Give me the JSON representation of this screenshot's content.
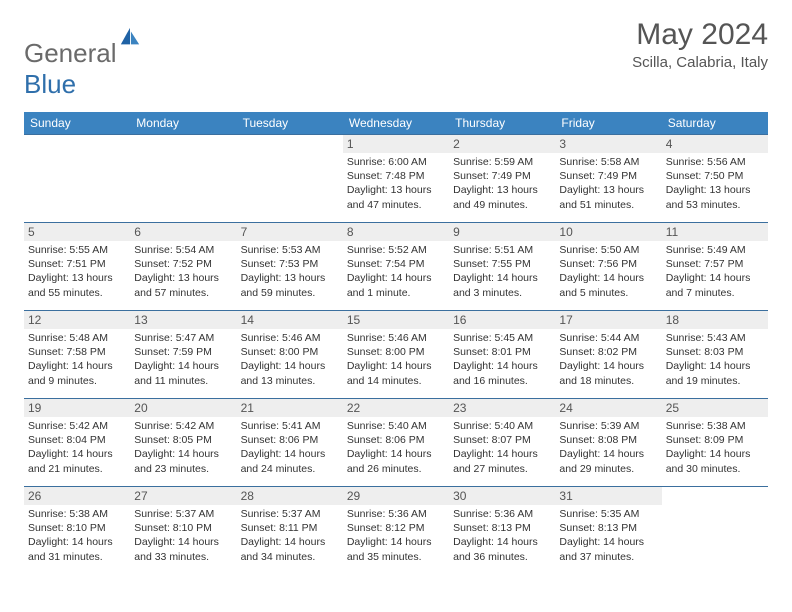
{
  "brand": {
    "part1": "General",
    "part2": "Blue"
  },
  "title": "May 2024",
  "location": "Scilla, Calabria, Italy",
  "weekdays": [
    "Sunday",
    "Monday",
    "Tuesday",
    "Wednesday",
    "Thursday",
    "Friday",
    "Saturday"
  ],
  "colors": {
    "header_bg": "#3b83c0",
    "header_text": "#ffffff",
    "row_border": "#3b6f9e",
    "daynum_bg": "#eeeeee",
    "text": "#333333"
  },
  "layout": {
    "blanks_before": 3,
    "blanks_after": 1
  },
  "days": [
    {
      "n": "1",
      "sunrise": "6:00 AM",
      "sunset": "7:48 PM",
      "daylight": "13 hours and 47 minutes."
    },
    {
      "n": "2",
      "sunrise": "5:59 AM",
      "sunset": "7:49 PM",
      "daylight": "13 hours and 49 minutes."
    },
    {
      "n": "3",
      "sunrise": "5:58 AM",
      "sunset": "7:49 PM",
      "daylight": "13 hours and 51 minutes."
    },
    {
      "n": "4",
      "sunrise": "5:56 AM",
      "sunset": "7:50 PM",
      "daylight": "13 hours and 53 minutes."
    },
    {
      "n": "5",
      "sunrise": "5:55 AM",
      "sunset": "7:51 PM",
      "daylight": "13 hours and 55 minutes."
    },
    {
      "n": "6",
      "sunrise": "5:54 AM",
      "sunset": "7:52 PM",
      "daylight": "13 hours and 57 minutes."
    },
    {
      "n": "7",
      "sunrise": "5:53 AM",
      "sunset": "7:53 PM",
      "daylight": "13 hours and 59 minutes."
    },
    {
      "n": "8",
      "sunrise": "5:52 AM",
      "sunset": "7:54 PM",
      "daylight": "14 hours and 1 minute."
    },
    {
      "n": "9",
      "sunrise": "5:51 AM",
      "sunset": "7:55 PM",
      "daylight": "14 hours and 3 minutes."
    },
    {
      "n": "10",
      "sunrise": "5:50 AM",
      "sunset": "7:56 PM",
      "daylight": "14 hours and 5 minutes."
    },
    {
      "n": "11",
      "sunrise": "5:49 AM",
      "sunset": "7:57 PM",
      "daylight": "14 hours and 7 minutes."
    },
    {
      "n": "12",
      "sunrise": "5:48 AM",
      "sunset": "7:58 PM",
      "daylight": "14 hours and 9 minutes."
    },
    {
      "n": "13",
      "sunrise": "5:47 AM",
      "sunset": "7:59 PM",
      "daylight": "14 hours and 11 minutes."
    },
    {
      "n": "14",
      "sunrise": "5:46 AM",
      "sunset": "8:00 PM",
      "daylight": "14 hours and 13 minutes."
    },
    {
      "n": "15",
      "sunrise": "5:46 AM",
      "sunset": "8:00 PM",
      "daylight": "14 hours and 14 minutes."
    },
    {
      "n": "16",
      "sunrise": "5:45 AM",
      "sunset": "8:01 PM",
      "daylight": "14 hours and 16 minutes."
    },
    {
      "n": "17",
      "sunrise": "5:44 AM",
      "sunset": "8:02 PM",
      "daylight": "14 hours and 18 minutes."
    },
    {
      "n": "18",
      "sunrise": "5:43 AM",
      "sunset": "8:03 PM",
      "daylight": "14 hours and 19 minutes."
    },
    {
      "n": "19",
      "sunrise": "5:42 AM",
      "sunset": "8:04 PM",
      "daylight": "14 hours and 21 minutes."
    },
    {
      "n": "20",
      "sunrise": "5:42 AM",
      "sunset": "8:05 PM",
      "daylight": "14 hours and 23 minutes."
    },
    {
      "n": "21",
      "sunrise": "5:41 AM",
      "sunset": "8:06 PM",
      "daylight": "14 hours and 24 minutes."
    },
    {
      "n": "22",
      "sunrise": "5:40 AM",
      "sunset": "8:06 PM",
      "daylight": "14 hours and 26 minutes."
    },
    {
      "n": "23",
      "sunrise": "5:40 AM",
      "sunset": "8:07 PM",
      "daylight": "14 hours and 27 minutes."
    },
    {
      "n": "24",
      "sunrise": "5:39 AM",
      "sunset": "8:08 PM",
      "daylight": "14 hours and 29 minutes."
    },
    {
      "n": "25",
      "sunrise": "5:38 AM",
      "sunset": "8:09 PM",
      "daylight": "14 hours and 30 minutes."
    },
    {
      "n": "26",
      "sunrise": "5:38 AM",
      "sunset": "8:10 PM",
      "daylight": "14 hours and 31 minutes."
    },
    {
      "n": "27",
      "sunrise": "5:37 AM",
      "sunset": "8:10 PM",
      "daylight": "14 hours and 33 minutes."
    },
    {
      "n": "28",
      "sunrise": "5:37 AM",
      "sunset": "8:11 PM",
      "daylight": "14 hours and 34 minutes."
    },
    {
      "n": "29",
      "sunrise": "5:36 AM",
      "sunset": "8:12 PM",
      "daylight": "14 hours and 35 minutes."
    },
    {
      "n": "30",
      "sunrise": "5:36 AM",
      "sunset": "8:13 PM",
      "daylight": "14 hours and 36 minutes."
    },
    {
      "n": "31",
      "sunrise": "5:35 AM",
      "sunset": "8:13 PM",
      "daylight": "14 hours and 37 minutes."
    }
  ],
  "labels": {
    "sunrise": "Sunrise: ",
    "sunset": "Sunset: ",
    "daylight": "Daylight: "
  }
}
